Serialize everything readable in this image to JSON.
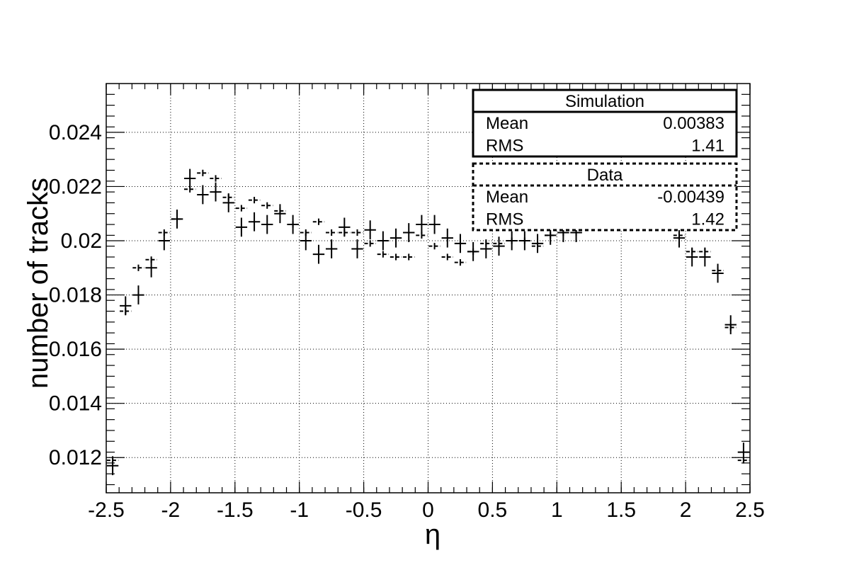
{
  "chart_data": {
    "type": "scatter",
    "xlabel": "η",
    "ylabel": "number of tracks",
    "xlim": [
      -2.5,
      2.5
    ],
    "ylim": [
      0.0107,
      0.0258
    ],
    "grid": true,
    "x_ticks": [
      "-2.5",
      "-2",
      "-1.5",
      "-1",
      "-0.5",
      "0",
      "0.5",
      "1",
      "1.5",
      "2",
      "2.5"
    ],
    "y_ticks": [
      "0.012",
      "0.014",
      "0.016",
      "0.018",
      "0.02",
      "0.022",
      "0.024"
    ],
    "x": [
      -2.45,
      -2.35,
      -2.25,
      -2.15,
      -2.05,
      -1.95,
      -1.85,
      -1.75,
      -1.65,
      -1.55,
      -1.45,
      -1.35,
      -1.25,
      -1.15,
      -1.05,
      -0.95,
      -0.85,
      -0.75,
      -0.65,
      -0.55,
      -0.45,
      -0.35,
      -0.25,
      -0.15,
      -0.05,
      0.05,
      0.15,
      0.25,
      0.35,
      0.45,
      0.55,
      0.65,
      0.75,
      0.85,
      0.95,
      1.05,
      1.15,
      1.95,
      2.05,
      2.15,
      2.25,
      2.35,
      2.45
    ],
    "series": [
      {
        "name": "Simulation",
        "style": "solid",
        "values": [
          0.0117,
          0.0176,
          0.018,
          0.019,
          0.02,
          0.0208,
          0.0223,
          0.0217,
          0.0218,
          0.0214,
          0.0205,
          0.0207,
          0.0206,
          0.021,
          0.0206,
          0.02,
          0.0195,
          0.0197,
          0.0205,
          0.0197,
          0.0204,
          0.02,
          0.0201,
          0.0203,
          0.0206,
          0.0206,
          0.0201,
          0.0199,
          0.0196,
          0.0197,
          0.0198,
          0.02,
          0.02,
          0.0199,
          0.0202,
          0.0203,
          0.0203,
          0.0201,
          0.0194,
          0.0194,
          0.0188,
          0.0169,
          0.0122
        ]
      },
      {
        "name": "Data",
        "style": "dashed",
        "values": [
          0.0119,
          0.0174,
          0.019,
          0.0193,
          0.0203,
          0.0208,
          0.0219,
          0.0225,
          0.0223,
          0.0216,
          0.0212,
          0.0215,
          0.0213,
          0.0211,
          0.0206,
          0.0203,
          0.0207,
          0.0203,
          0.0203,
          0.0203,
          0.0199,
          0.0195,
          0.0194,
          0.0194,
          0.0202,
          0.0198,
          0.0194,
          0.0192,
          0.0196,
          0.0199,
          0.0199,
          0.02,
          0.02,
          0.0198,
          0.0202,
          0.0203,
          0.0203,
          0.0202,
          0.0196,
          0.0196,
          0.0189,
          0.0168,
          0.0119
        ]
      }
    ],
    "stats_boxes": [
      {
        "title": "Simulation",
        "style": "solid",
        "rows": [
          {
            "label": "Mean",
            "value": "0.00383"
          },
          {
            "label": "RMS",
            "value": "1.41"
          }
        ]
      },
      {
        "title": "Data",
        "style": "dashed",
        "rows": [
          {
            "label": "Mean",
            "value": "-0.00439"
          },
          {
            "label": "RMS",
            "value": "1.42"
          }
        ]
      }
    ]
  }
}
